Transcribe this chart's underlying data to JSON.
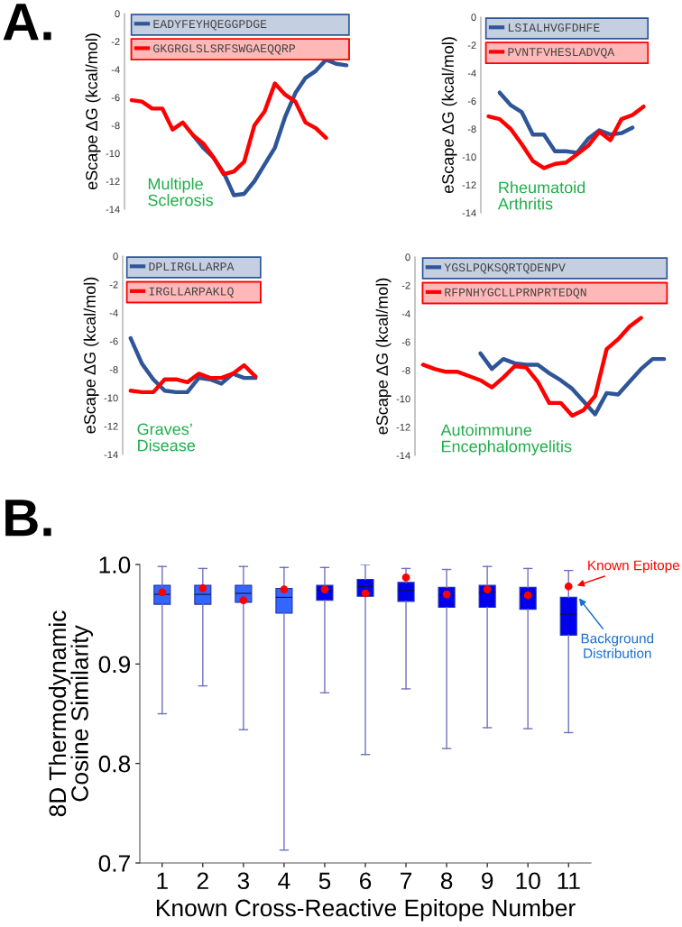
{
  "chart_data": [
    {
      "type": "line",
      "ylabel": "eScape ΔG (kcal/mol)",
      "annotations": [
        "A.",
        "Multiple\nSclerosis"
      ],
      "categories": [
        null,
        null,
        null,
        null,
        null,
        null,
        null,
        null,
        null,
        null,
        null,
        null,
        null,
        null,
        null,
        null,
        null,
        null,
        null,
        null,
        null,
        null
      ],
      "ylim": [
        -14,
        0
      ],
      "yticks": [
        0,
        -2,
        -4,
        -6,
        -8,
        -10,
        -12,
        -14
      ],
      "tick_labels": "y",
      "legend": "top",
      "series": [
        {
          "name": "EADYFEYHQEGGPDGE",
          "color": "#2e5597",
          "values": [
            null,
            null,
            null,
            null,
            null,
            null,
            -8.7,
            -9.6,
            -10.3,
            -11.4,
            -13.0,
            -12.9,
            -12.0,
            -10.8,
            -9.6,
            -7.4,
            -5.7,
            -4.6,
            -4.1,
            -3.3,
            -3.6,
            -3.7
          ]
        },
        {
          "name": "GKGRGLSLSRFSWGAEQQRP",
          "color": "#ff0000",
          "values": [
            -6.2,
            -6.3,
            -6.8,
            -6.8,
            -8.3,
            -7.8,
            -8.7,
            -9.3,
            -10.3,
            -11.5,
            -11.3,
            -10.6,
            -8.0,
            -7.0,
            -5.0,
            -5.8,
            -6.3,
            -7.8,
            -8.2,
            -8.9,
            null,
            null
          ]
        }
      ]
    },
    {
      "type": "line",
      "ylabel": "eScape ΔG (kcal/mol)",
      "annotations": [
        "Rheumatoid\nArthritis"
      ],
      "categories": [
        null,
        null,
        null,
        null,
        null,
        null,
        null,
        null,
        null,
        null,
        null,
        null,
        null,
        null,
        null
      ],
      "ylim": [
        -14,
        0
      ],
      "yticks": [
        0,
        -2,
        -4,
        -6,
        -8,
        -10,
        -12,
        -14
      ],
      "tick_labels": "y",
      "legend": "top",
      "series": [
        {
          "name": "LSIALHVGFDHFE",
          "color": "#2e5597",
          "values": [
            null,
            -5.4,
            -6.3,
            -6.8,
            -8.4,
            -8.4,
            -9.6,
            -9.6,
            -9.7,
            -8.7,
            -8.1,
            -8.4,
            -8.3,
            -7.9,
            null
          ]
        },
        {
          "name": "PVNTFVHESLADVQA",
          "color": "#ff0000",
          "values": [
            -7.1,
            -7.3,
            -8.0,
            -9.1,
            -10.3,
            -10.8,
            -10.5,
            -10.4,
            -9.8,
            -9.2,
            -8.2,
            -8.8,
            -7.3,
            -7.0,
            -6.4
          ]
        }
      ]
    },
    {
      "type": "line",
      "ylabel": "eScape ΔG (kcal/mol)",
      "annotations": [
        "Graves’\nDisease"
      ],
      "categories": [
        null,
        null,
        null,
        null,
        null,
        null,
        null,
        null,
        null,
        null,
        null,
        null
      ],
      "ylim": [
        -14,
        0
      ],
      "yticks": [
        0,
        -2,
        -4,
        -6,
        -8,
        -10,
        -12,
        -14
      ],
      "tick_labels": "y",
      "legend": "top",
      "series": [
        {
          "name": "DPLIRGLLARPA",
          "color": "#2e5597",
          "values": [
            -5.8,
            -7.6,
            -8.7,
            -9.5,
            -9.6,
            -9.6,
            -8.6,
            -8.7,
            -9.0,
            -8.3,
            -8.6,
            -8.6
          ]
        },
        {
          "name": "IRGLLARPAKLQ",
          "color": "#ff0000",
          "values": [
            -9.5,
            -9.6,
            -9.6,
            -8.7,
            -8.7,
            -8.9,
            -8.3,
            -8.6,
            -8.6,
            -8.3,
            -7.7,
            -8.5
          ]
        }
      ]
    },
    {
      "type": "line",
      "ylabel": "eScape ΔG (kcal/mol)",
      "annotations": [
        "Autoimmune\nEncephalomyelitis"
      ],
      "categories": [
        null,
        null,
        null,
        null,
        null,
        null,
        null,
        null,
        null,
        null,
        null,
        null,
        null,
        null,
        null,
        null,
        null,
        null,
        null,
        null,
        null,
        null
      ],
      "ylim": [
        -14,
        0
      ],
      "yticks": [
        0,
        -2,
        -4,
        -6,
        -8,
        -10,
        -12,
        -14
      ],
      "tick_labels": "y",
      "legend": "top",
      "series": [
        {
          "name": "YGSLPQKSQRTQDENPV",
          "color": "#2e5597",
          "values": [
            null,
            null,
            null,
            null,
            null,
            -6.8,
            -7.9,
            -7.2,
            -7.5,
            -7.6,
            -7.6,
            -8.2,
            -8.7,
            -9.3,
            -10.2,
            -11.1,
            -9.6,
            -9.7,
            -8.8,
            -7.9,
            -7.2,
            -7.2
          ]
        },
        {
          "name": "RFPNHYGCLLPRNPRTEDQN",
          "color": "#ff0000",
          "values": [
            -7.6,
            -7.9,
            -8.1,
            -8.1,
            -8.4,
            -8.7,
            -9.2,
            -8.5,
            -7.7,
            -7.8,
            -8.8,
            -10.3,
            -10.3,
            -11.2,
            -10.8,
            -9.8,
            -6.5,
            -5.8,
            -4.9,
            -4.3,
            null,
            null
          ]
        }
      ]
    },
    {
      "type": "box",
      "xlabel": "Known Cross-Reactive Epitope Number",
      "ylabel": "8D Thermodynamic\nCosine Similarity",
      "annotations": [
        "B."
      ],
      "categories": [
        "1",
        "2",
        "3",
        "4",
        "5",
        "6",
        "7",
        "8",
        "9",
        "10",
        "11"
      ],
      "ylim": [
        0.7,
        1.0
      ],
      "yticks": [
        0.7,
        0.8,
        0.9,
        {
          "value": 1.0,
          "label": "1.0"
        }
      ],
      "series": [
        {
          "type": "box",
          "name": "Background Distribution",
          "colors": [
            "#3366ff",
            "#3366ff",
            "#3366ff",
            "#3366ff",
            "#0000ee",
            "#0000ee",
            "#0000ee",
            "#0000ee",
            "#0000ee",
            "#0000ee",
            "#0000ee"
          ],
          "boxes": [
            {
              "low": 0.85,
              "q1": 0.96,
              "median": 0.97,
              "q3": 0.979,
              "high": 0.998
            },
            {
              "low": 0.878,
              "q1": 0.96,
              "median": 0.97,
              "q3": 0.979,
              "high": 0.996
            },
            {
              "low": 0.834,
              "q1": 0.962,
              "median": 0.971,
              "q3": 0.979,
              "high": 0.998
            },
            {
              "low": 0.713,
              "q1": 0.951,
              "median": 0.967,
              "q3": 0.976,
              "high": 0.997
            },
            {
              "low": 0.871,
              "q1": 0.964,
              "median": 0.974,
              "q3": 0.979,
              "high": 0.997
            },
            {
              "low": 0.809,
              "q1": 0.968,
              "median": 0.978,
              "q3": 0.985,
              "high": 1.0
            },
            {
              "low": 0.875,
              "q1": 0.963,
              "median": 0.974,
              "q3": 0.982,
              "high": 0.996
            },
            {
              "low": 0.815,
              "q1": 0.957,
              "median": 0.969,
              "q3": 0.977,
              "high": 0.995
            },
            {
              "low": 0.836,
              "q1": 0.957,
              "median": 0.972,
              "q3": 0.979,
              "high": 0.998
            },
            {
              "low": 0.835,
              "q1": 0.955,
              "median": 0.97,
              "q3": 0.977,
              "high": 0.996
            },
            {
              "low": 0.831,
              "q1": 0.929,
              "median": 0.95,
              "q3": 0.967,
              "high": 0.994
            }
          ]
        },
        {
          "type": "scatter",
          "name": "Known Epitope",
          "color": "#ff0000",
          "x": [
            "1",
            "2",
            "3",
            "4",
            "5",
            "6",
            "7",
            "8",
            "9",
            "10",
            "11"
          ],
          "values": [
            0.972,
            0.976,
            0.964,
            0.975,
            0.975,
            0.971,
            0.987,
            0.97,
            0.975,
            0.969,
            0.978
          ]
        }
      ]
    }
  ]
}
